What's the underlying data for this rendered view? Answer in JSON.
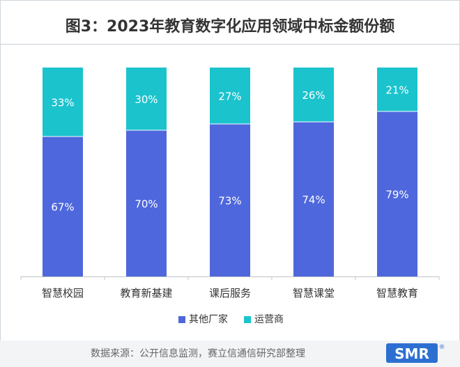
{
  "title": "图3：2023年教育数字化应用领域中标金额份额",
  "source": "数据来源：公开信息监测，赛立信通信研究部整理",
  "logo_text": "SMR",
  "colors": {
    "series1": "#4f67dc",
    "series2": "#1bc3cd",
    "axis": "#bfc4ca"
  },
  "chart_data": {
    "type": "bar",
    "stacked": true,
    "percent": true,
    "categories": [
      "智慧校园",
      "教育新基建",
      "课后服务",
      "智慧课堂",
      "智慧教育"
    ],
    "series": [
      {
        "name": "其他厂家",
        "values": [
          67,
          70,
          73,
          74,
          79
        ],
        "labels": [
          "67%",
          "70%",
          "73%",
          "74%",
          "79%"
        ],
        "color": "#4f67dc"
      },
      {
        "name": "运营商",
        "values": [
          33,
          30,
          27,
          26,
          21
        ],
        "labels": [
          "33%",
          "30%",
          "27%",
          "26%",
          "21%"
        ],
        "color": "#1bc3cd"
      }
    ],
    "ylim": [
      0,
      100
    ],
    "legend_position": "bottom",
    "grid": false
  }
}
